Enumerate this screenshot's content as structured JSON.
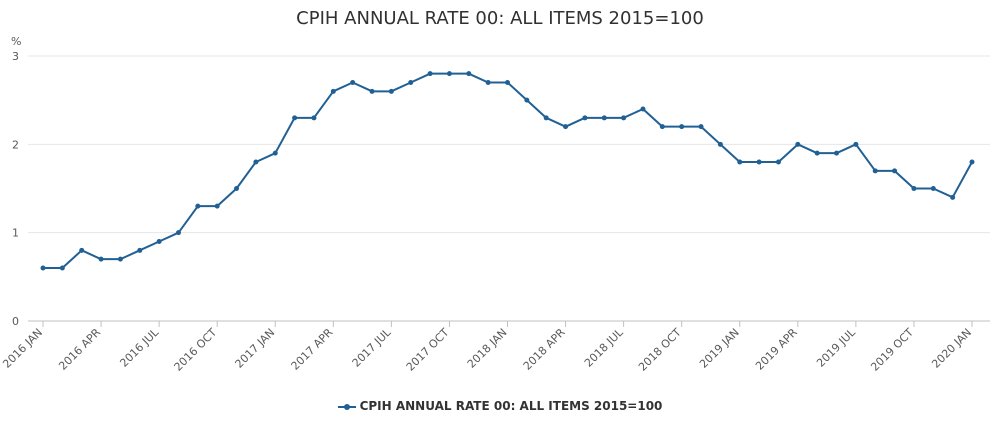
{
  "chart_data": {
    "type": "line",
    "title": "CPIH ANNUAL RATE 00: ALL ITEMS 2015=100",
    "unit_label": "%",
    "ylim": [
      0,
      3
    ],
    "y_ticks": [
      0,
      1,
      2,
      3
    ],
    "grid": true,
    "legend_position": "bottom-center",
    "color": "#206095",
    "x": [
      "2016 JAN",
      "2016 FEB",
      "2016 MAR",
      "2016 APR",
      "2016 MAY",
      "2016 JUN",
      "2016 JUL",
      "2016 AUG",
      "2016 SEP",
      "2016 OCT",
      "2016 NOV",
      "2016 DEC",
      "2017 JAN",
      "2017 FEB",
      "2017 MAR",
      "2017 APR",
      "2017 MAY",
      "2017 JUN",
      "2017 JUL",
      "2017 AUG",
      "2017 SEP",
      "2017 OCT",
      "2017 NOV",
      "2017 DEC",
      "2018 JAN",
      "2018 FEB",
      "2018 MAR",
      "2018 APR",
      "2018 MAY",
      "2018 JUN",
      "2018 JUL",
      "2018 AUG",
      "2018 SEP",
      "2018 OCT",
      "2018 NOV",
      "2018 DEC",
      "2019 JAN",
      "2019 FEB",
      "2019 MAR",
      "2019 APR",
      "2019 MAY",
      "2019 JUN",
      "2019 JUL",
      "2019 AUG",
      "2019 SEP",
      "2019 OCT",
      "2019 NOV",
      "2019 DEC",
      "2020 JAN"
    ],
    "x_tick_labels": [
      "2016 JAN",
      "2016 APR",
      "2016 JUL",
      "2016 OCT",
      "2017 JAN",
      "2017 APR",
      "2017 JUL",
      "2017 OCT",
      "2018 JAN",
      "2018 APR",
      "2018 JUL",
      "2018 OCT",
      "2019 JAN",
      "2019 APR",
      "2019 JUL",
      "2019 OCT",
      "2020 JAN"
    ],
    "series": [
      {
        "name": "CPIH ANNUAL RATE 00: ALL ITEMS 2015=100",
        "values": [
          0.6,
          0.6,
          0.8,
          0.7,
          0.7,
          0.8,
          0.9,
          1.0,
          1.3,
          1.3,
          1.5,
          1.8,
          1.9,
          2.3,
          2.3,
          2.6,
          2.7,
          2.6,
          2.6,
          2.7,
          2.8,
          2.8,
          2.8,
          2.7,
          2.7,
          2.5,
          2.3,
          2.2,
          2.3,
          2.3,
          2.3,
          2.4,
          2.2,
          2.2,
          2.2,
          2.0,
          1.8,
          1.8,
          1.8,
          2.0,
          1.9,
          1.9,
          2.0,
          1.7,
          1.7,
          1.5,
          1.5,
          1.4,
          1.8
        ]
      }
    ]
  }
}
